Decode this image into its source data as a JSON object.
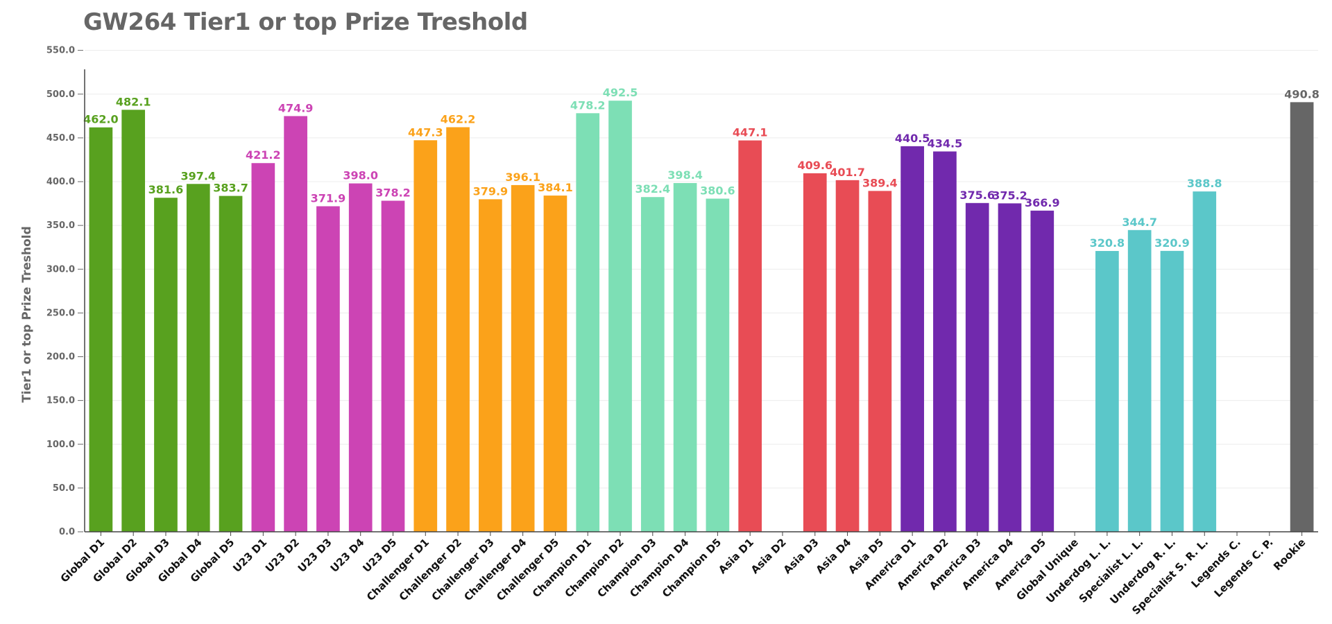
{
  "chart_data": {
    "type": "bar",
    "title": "GW264 Tier1 or top Prize Treshold",
    "xlabel": "",
    "ylabel": "Tier1 or top Prize Treshold",
    "ylim": [
      0,
      560
    ],
    "grid": true,
    "yticks": [
      "0.0",
      "50.0",
      "100.0",
      "150.0",
      "200.0",
      "250.0",
      "300.0",
      "350.0",
      "400.0",
      "450.0",
      "500.0",
      "550.0"
    ],
    "categories": [
      "Global D1",
      "Global D2",
      "Global D3",
      "Global D4",
      "Global D5",
      "U23 D1",
      "U23 D2",
      "U23 D3",
      "U23 D4",
      "U23 D5",
      "Challenger D1",
      "Challenger D2",
      "Challenger D3",
      "Challenger D4",
      "Challenger D5",
      "Champion D1",
      "Champion D2",
      "Champion D3",
      "Champion D4",
      "Champion D5",
      "Asia D1",
      "Asia D2",
      "Asia D3",
      "Asia D4",
      "Asia D5",
      "America D1",
      "America D2",
      "America D3",
      "America D4",
      "America D5",
      "Global Unique",
      "Underdog L. L.",
      "Specialist L. L.",
      "Underdog R. L.",
      "Specialist S. R. L.",
      "Legends C.",
      "Legends C. P.",
      "Rookie"
    ],
    "values": [
      462.0,
      482.1,
      381.6,
      397.4,
      383.7,
      421.2,
      474.9,
      371.9,
      398.0,
      378.2,
      447.3,
      462.2,
      379.9,
      396.1,
      384.1,
      478.2,
      492.5,
      382.4,
      398.4,
      380.6,
      447.1,
      null,
      409.6,
      401.7,
      389.4,
      440.5,
      434.5,
      375.6,
      375.2,
      366.9,
      null,
      320.8,
      344.7,
      320.9,
      388.8,
      null,
      null,
      490.8
    ],
    "value_labels": [
      "462.0",
      "482.1",
      "381.6",
      "397.4",
      "383.7",
      "421.2",
      "474.9",
      "371.9",
      "398.0",
      "378.2",
      "447.3",
      "462.2",
      "379.9",
      "396.1",
      "384.1",
      "478.2",
      "492.5",
      "382.4",
      "398.4",
      "380.6",
      "447.1",
      "",
      "409.6",
      "401.7",
      "389.4",
      "440.5",
      "434.5",
      "375.6",
      "375.2",
      "366.9",
      "",
      "320.8",
      "344.7",
      "320.9",
      "388.8",
      "",
      "",
      "490.8"
    ],
    "colors": [
      "#58a11f",
      "#58a11f",
      "#58a11f",
      "#58a11f",
      "#58a11f",
      "#cc44b4",
      "#cc44b4",
      "#cc44b4",
      "#cc44b4",
      "#cc44b4",
      "#fba21a",
      "#fba21a",
      "#fba21a",
      "#fba21a",
      "#fba21a",
      "#7ddfb5",
      "#7ddfb5",
      "#7ddfb5",
      "#7ddfb5",
      "#7ddfb5",
      "#e84c55",
      "#e84c55",
      "#e84c55",
      "#e84c55",
      "#e84c55",
      "#7129ad",
      "#7129ad",
      "#7129ad",
      "#7129ad",
      "#7129ad",
      "#5bc7c9",
      "#5bc7c9",
      "#5bc7c9",
      "#5bc7c9",
      "#5bc7c9",
      "#666666",
      "#666666",
      "#666666"
    ]
  }
}
